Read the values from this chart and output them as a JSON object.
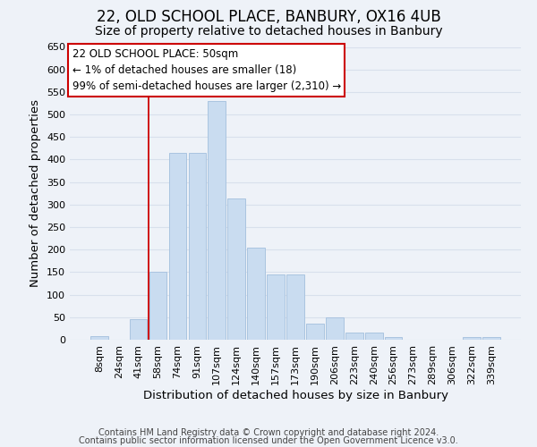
{
  "title": "22, OLD SCHOOL PLACE, BANBURY, OX16 4UB",
  "subtitle": "Size of property relative to detached houses in Banbury",
  "xlabel": "Distribution of detached houses by size in Banbury",
  "ylabel": "Number of detached properties",
  "bar_labels": [
    "8sqm",
    "24sqm",
    "41sqm",
    "58sqm",
    "74sqm",
    "91sqm",
    "107sqm",
    "124sqm",
    "140sqm",
    "157sqm",
    "173sqm",
    "190sqm",
    "206sqm",
    "223sqm",
    "240sqm",
    "256sqm",
    "273sqm",
    "289sqm",
    "306sqm",
    "322sqm",
    "339sqm"
  ],
  "bar_values": [
    8,
    0,
    45,
    150,
    415,
    415,
    530,
    313,
    205,
    145,
    145,
    35,
    50,
    15,
    15,
    5,
    0,
    0,
    0,
    5,
    5
  ],
  "bar_color": "#c9dcf0",
  "bar_edge_color": "#aac4e0",
  "ylim": [
    0,
    650
  ],
  "yticks": [
    0,
    50,
    100,
    150,
    200,
    250,
    300,
    350,
    400,
    450,
    500,
    550,
    600,
    650
  ],
  "vline_x": 2.5,
  "vline_color": "#cc0000",
  "annotation_box_color": "#ffffff",
  "annotation_box_edge_color": "#cc0000",
  "annotation_line1": "22 OLD SCHOOL PLACE: 50sqm",
  "annotation_line2": "← 1% of detached houses are smaller (18)",
  "annotation_line3": "99% of semi-detached houses are larger (2,310) →",
  "footnote1": "Contains HM Land Registry data © Crown copyright and database right 2024.",
  "footnote2": "Contains public sector information licensed under the Open Government Licence v3.0.",
  "background_color": "#eef2f8",
  "grid_color": "#d8e0ec",
  "title_fontsize": 12,
  "subtitle_fontsize": 10,
  "axis_label_fontsize": 9.5,
  "tick_fontsize": 8,
  "annotation_fontsize": 8.5,
  "footnote_fontsize": 7
}
